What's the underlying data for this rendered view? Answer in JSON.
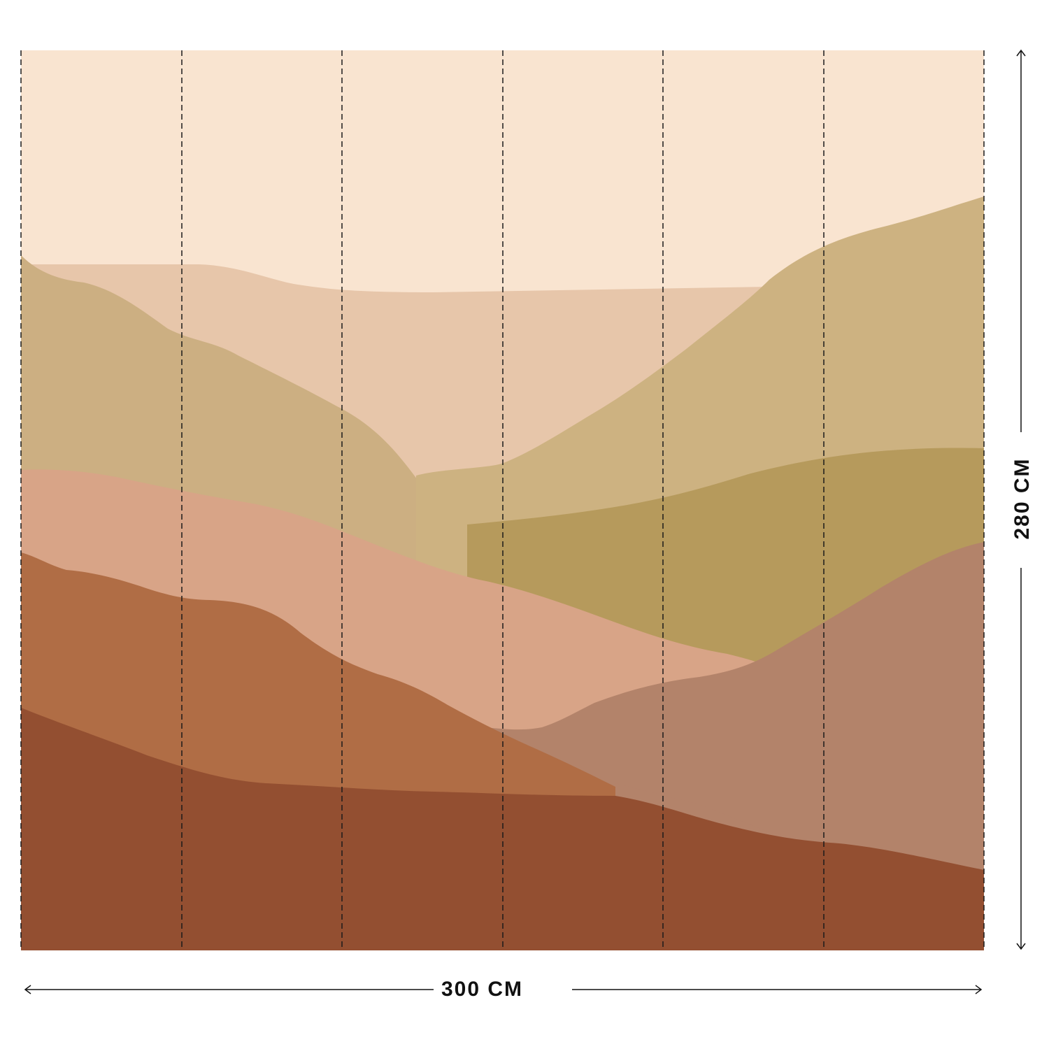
{
  "dimensions": {
    "width_label": "300 CM",
    "height_label": "280 CM"
  },
  "mural": {
    "panel_count": 6,
    "colors": {
      "sky": "#f9e4d0",
      "far_hills": "#e7c6aa",
      "left_ochre_hill": "#ccaf82",
      "right_ochre_hill": "#cdb281",
      "olive_hill": "#b69a5c",
      "pink_band": "#d8a487",
      "mauve_hill": "#b3836a",
      "rust_mid": "#b06d45",
      "rust_dark": "#934f31",
      "seam_line": "#1a1a1a"
    }
  }
}
